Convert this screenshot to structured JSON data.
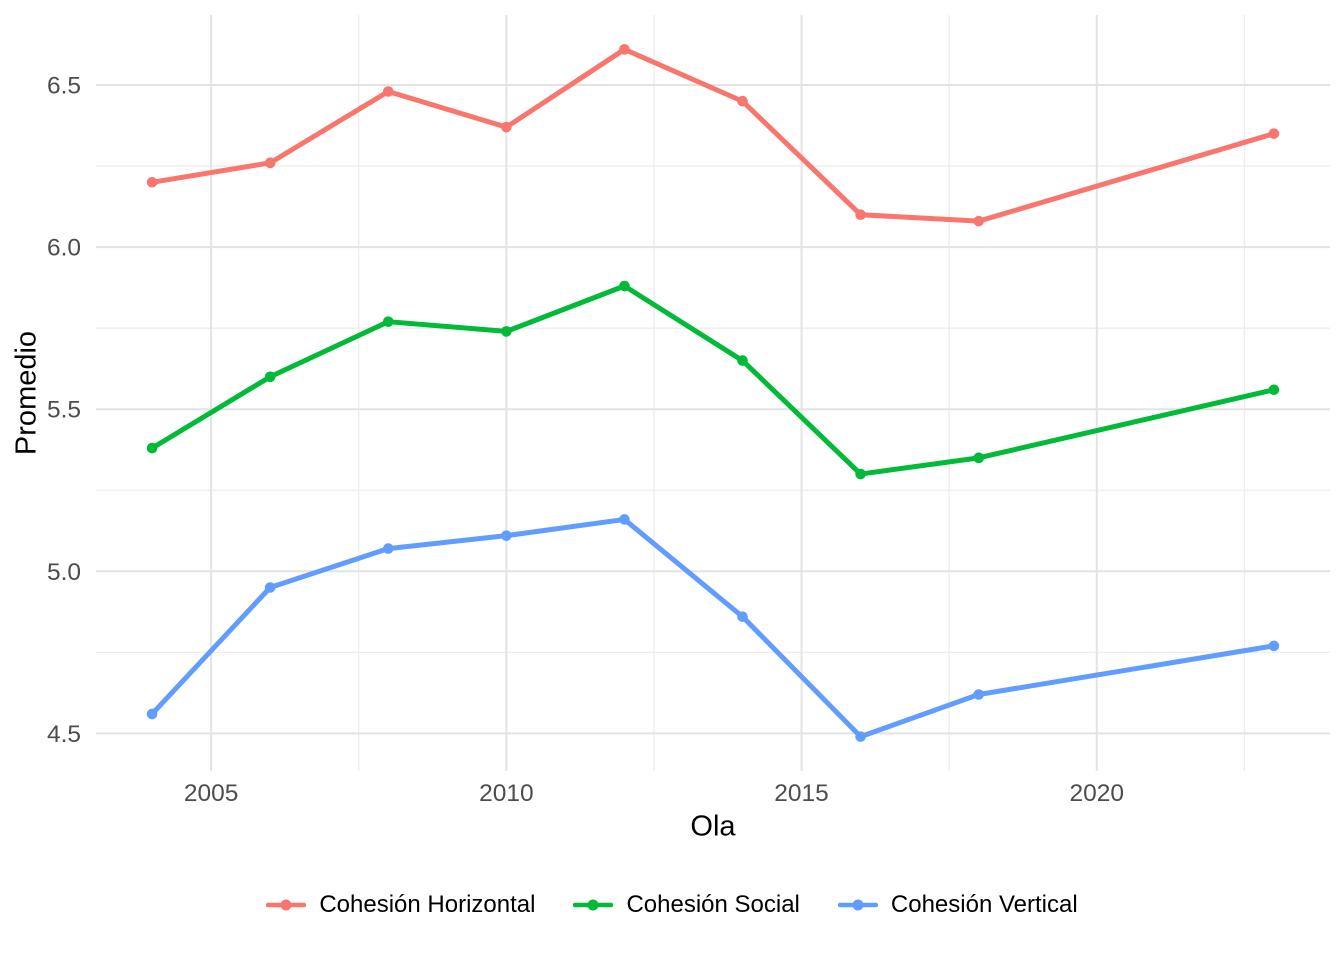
{
  "chart_data": {
    "type": "line",
    "title": "",
    "xlabel": "Ola",
    "ylabel": "Promedio",
    "x": [
      2004,
      2006,
      2008,
      2010,
      2012,
      2014,
      2016,
      2018,
      2023
    ],
    "series": [
      {
        "name": "Cohesión Horizontal",
        "color": "#F8766D",
        "values": [
          6.2,
          6.26,
          6.48,
          6.37,
          6.61,
          6.45,
          6.1,
          6.08,
          6.35
        ]
      },
      {
        "name": "Cohesión Social",
        "color": "#00BA38",
        "values": [
          5.38,
          5.6,
          5.77,
          5.74,
          5.88,
          5.65,
          5.3,
          5.35,
          5.56
        ]
      },
      {
        "name": "Cohesión Vertical",
        "color": "#619CFF",
        "values": [
          4.56,
          4.95,
          5.07,
          5.11,
          5.16,
          4.86,
          4.49,
          4.62,
          4.77
        ]
      }
    ],
    "xticks": [
      {
        "value": 2005,
        "label": "2005"
      },
      {
        "value": 2010,
        "label": "2010"
      },
      {
        "value": 2015,
        "label": "2015"
      },
      {
        "value": 2020,
        "label": "2020"
      }
    ],
    "yticks": [
      {
        "value": 4.5,
        "label": "4.5"
      },
      {
        "value": 5.0,
        "label": "5.0"
      },
      {
        "value": 5.5,
        "label": "5.5"
      },
      {
        "value": 6.0,
        "label": "6.0"
      },
      {
        "value": 6.5,
        "label": "6.5"
      }
    ],
    "x_minor": [
      2007.5,
      2012.5,
      2017.5,
      2022.5
    ],
    "y_minor": [
      4.75,
      5.25,
      5.75,
      6.25
    ],
    "xlim": [
      2003.05,
      2023.95
    ],
    "ylim": [
      4.384,
      6.716
    ],
    "grid": true,
    "legend_position": "bottom",
    "colors": {
      "background": "#FFFFFF",
      "grid_major": "#E3E3E3",
      "grid_minor": "#EDEDED",
      "tick_label": "#4D4D4D",
      "axis_title": "#000000"
    }
  }
}
